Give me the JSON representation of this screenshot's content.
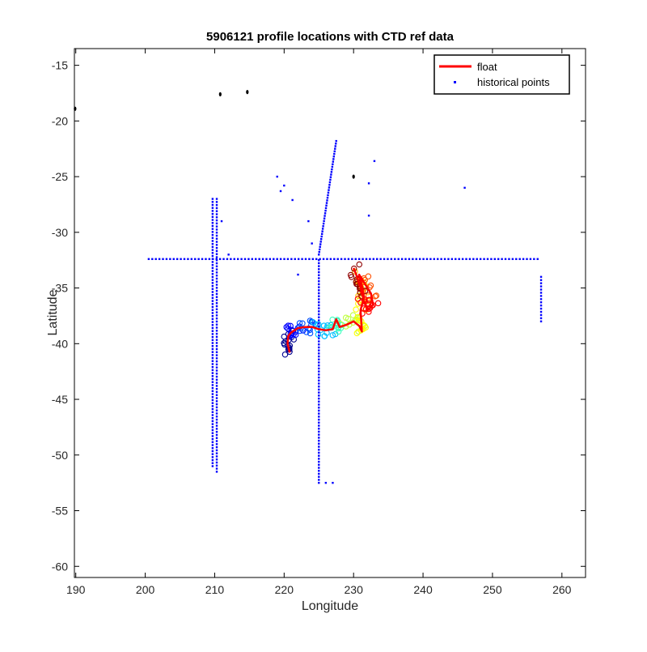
{
  "chart_data": {
    "type": "scatter",
    "title": "5906121 profile locations with CTD ref data",
    "xlabel": "Longitude",
    "ylabel": "Latitude",
    "xlim": [
      189.8,
      263.4
    ],
    "ylim": [
      -61.0,
      -13.5
    ],
    "xticks": [
      190,
      200,
      210,
      220,
      230,
      240,
      250,
      260
    ],
    "yticks": [
      -15,
      -20,
      -25,
      -30,
      -35,
      -40,
      -45,
      -50,
      -55,
      -60
    ],
    "grid": false,
    "legend_position": "top-right",
    "legend": [
      {
        "label": "float",
        "color": "#ff0000",
        "marker": "line"
      },
      {
        "label": "historical points",
        "color": "#0000ff",
        "marker": "dot"
      }
    ],
    "series": [
      {
        "name": "historical points",
        "color": "#0000ff",
        "segments": [
          {
            "from": [
              200.5,
              -32.4
            ],
            "to": [
              256.5,
              -32.4
            ],
            "count": 110
          },
          {
            "from": [
              209.7,
              -27.0
            ],
            "to": [
              209.7,
              -51.0
            ],
            "count": 90
          },
          {
            "from": [
              210.3,
              -27.0
            ],
            "to": [
              210.3,
              -51.5
            ],
            "count": 90
          },
          {
            "from": [
              225.0,
              -32.5
            ],
            "to": [
              225.0,
              -52.5
            ],
            "count": 75
          },
          {
            "from": [
              227.5,
              -21.8
            ],
            "to": [
              225.0,
              -32.0
            ],
            "count": 45
          },
          {
            "from": [
              257.0,
              -34.0
            ],
            "to": [
              257.0,
              -38.0
            ],
            "count": 15
          }
        ],
        "points": [
          [
            219.0,
            -25.0
          ],
          [
            219.5,
            -26.3
          ],
          [
            220.0,
            -25.8
          ],
          [
            221.2,
            -27.1
          ],
          [
            222.0,
            -33.8
          ],
          [
            223.5,
            -29.0
          ],
          [
            224.0,
            -31.0
          ],
          [
            212.0,
            -32.0
          ],
          [
            211.0,
            -29.0
          ],
          [
            232.2,
            -25.6
          ],
          [
            232.2,
            -28.5
          ],
          [
            233.0,
            -23.6
          ],
          [
            246.0,
            -26.0
          ],
          [
            226.0,
            -52.5
          ],
          [
            227.0,
            -52.5
          ]
        ]
      },
      {
        "name": "float",
        "color": "#ff0000",
        "x": [
          220.8,
          220.5,
          220.6,
          221.0,
          221.5,
          222.0,
          223.0,
          224.0,
          225.0,
          226.0,
          227.0,
          227.5,
          228.0,
          229.0,
          230.0,
          230.8,
          231.2,
          231.0,
          231.5,
          231.2,
          230.8,
          231.5,
          232.5,
          232.8,
          232.0,
          231.5,
          231.0,
          230.5,
          230.0
        ],
        "y": [
          -40.8,
          -40.0,
          -39.3,
          -39.0,
          -38.8,
          -38.6,
          -38.5,
          -38.5,
          -38.7,
          -38.8,
          -38.7,
          -37.8,
          -38.5,
          -38.3,
          -38.0,
          -38.4,
          -38.9,
          -37.0,
          -35.8,
          -34.8,
          -33.8,
          -34.5,
          -35.5,
          -36.5,
          -37.0,
          -36.2,
          -35.0,
          -34.0,
          -33.2
        ]
      },
      {
        "name": "",
        "color": "#000000",
        "points": [
          [
            189.9,
            -18.9
          ],
          [
            210.8,
            -17.6
          ],
          [
            214.7,
            -17.4
          ],
          [
            230.0,
            -25.0
          ]
        ]
      }
    ],
    "profile_markers": {
      "style": "jet-colormap circles along float track (blue early → red late)",
      "colors": [
        "#00008f",
        "#0000ff",
        "#0050ff",
        "#00bfff",
        "#40ffbf",
        "#bfff40",
        "#ffff00",
        "#ffbf00",
        "#ff5000",
        "#ff0000",
        "#8f0000"
      ]
    }
  }
}
